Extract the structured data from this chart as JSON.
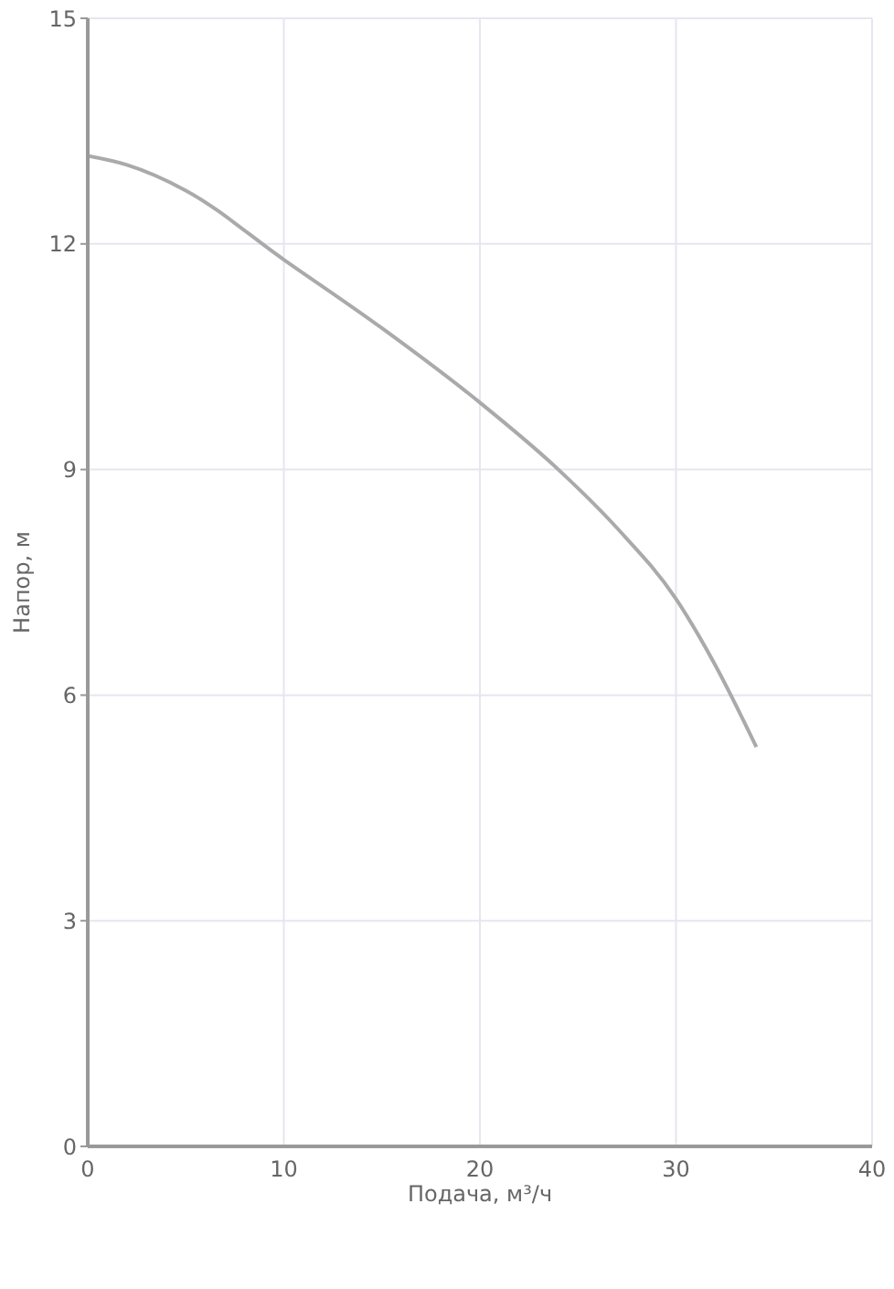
{
  "chart_data": {
    "type": "line",
    "xlabel": "Подача, м³/ч",
    "ylabel": "Напор, м",
    "x": [
      0,
      2,
      5,
      10,
      15,
      20,
      24,
      27,
      30,
      32,
      34.1
    ],
    "series": [
      {
        "color": "#aaaaaa",
        "values": [
          13.17,
          13.05,
          12.71,
          11.79,
          10.88,
          9.89,
          9.0,
          8.22,
          7.28,
          6.4,
          5.31
        ]
      }
    ],
    "xlim": [
      0,
      40
    ],
    "xticks": [
      0,
      10,
      20,
      30,
      40
    ],
    "ylim": [
      0,
      15
    ],
    "yticks": [
      0,
      3,
      6,
      9,
      12,
      15
    ],
    "grid": true,
    "marker": "none",
    "line_style": "solid"
  }
}
